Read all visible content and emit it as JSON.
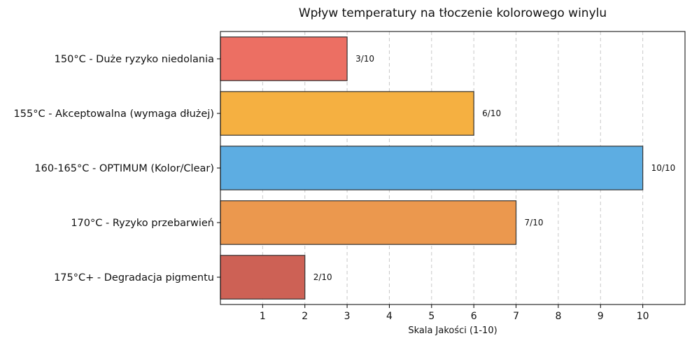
{
  "chart_data": {
    "type": "bar",
    "orientation": "horizontal",
    "title": "Wpływ temperatury na tłoczenie kolorowego winylu",
    "xlabel": "Skala Jakości (1-10)",
    "ylabel": "",
    "xlim": [
      0,
      11
    ],
    "xticks": [
      1,
      2,
      3,
      4,
      5,
      6,
      7,
      8,
      9,
      10
    ],
    "grid": "x-dashed",
    "categories": [
      "150°C - Duże ryzyko niedolania",
      "155°C - Akceptowalna (wymaga dłużej)",
      "160-165°C - OPTIMUM (Kolor/Clear)",
      "170°C - Ryzyko przebarwień",
      "175°C+ - Degradacja pigmentu"
    ],
    "values": [
      3,
      6,
      10,
      7,
      2
    ],
    "data_labels": [
      "3/10",
      "6/10",
      "10/10",
      "7/10",
      "2/10"
    ],
    "colors": [
      "#ec6f63",
      "#f5b041",
      "#5dade2",
      "#eb984e",
      "#cd6155"
    ]
  }
}
